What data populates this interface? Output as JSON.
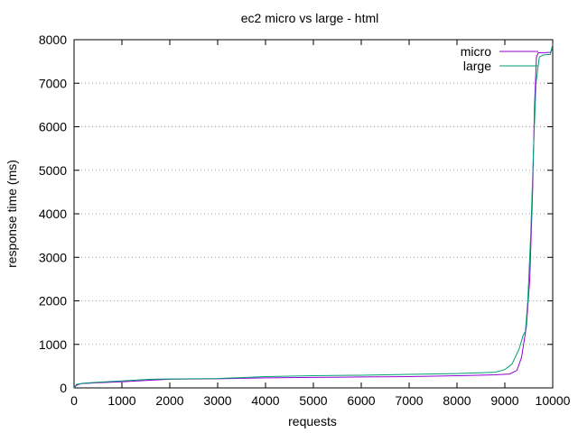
{
  "chart_data": {
    "type": "line",
    "title": "ec2 micro vs large - html",
    "xlabel": "requests",
    "ylabel": "response time (ms)",
    "xlim": [
      0,
      10000
    ],
    "ylim": [
      0,
      8000
    ],
    "xticks": [
      0,
      1000,
      2000,
      3000,
      4000,
      5000,
      6000,
      7000,
      8000,
      9000,
      10000
    ],
    "yticks": [
      0,
      1000,
      2000,
      3000,
      4000,
      5000,
      6000,
      7000,
      8000
    ],
    "grid": "horizontal dotted",
    "legend_position": "top-right",
    "series": [
      {
        "name": "micro",
        "color": "#9400d3",
        "points": [
          [
            0,
            0
          ],
          [
            50,
            60
          ],
          [
            150,
            100
          ],
          [
            500,
            120
          ],
          [
            1000,
            140
          ],
          [
            1500,
            170
          ],
          [
            2000,
            200
          ],
          [
            3000,
            210
          ],
          [
            4000,
            230
          ],
          [
            5000,
            240
          ],
          [
            6000,
            250
          ],
          [
            7000,
            260
          ],
          [
            8000,
            280
          ],
          [
            8800,
            300
          ],
          [
            9100,
            320
          ],
          [
            9250,
            400
          ],
          [
            9350,
            700
          ],
          [
            9450,
            1400
          ],
          [
            9520,
            2500
          ],
          [
            9580,
            4500
          ],
          [
            9620,
            6500
          ],
          [
            9660,
            7600
          ],
          [
            9700,
            7700
          ],
          [
            9800,
            7700
          ],
          [
            9950,
            7710
          ],
          [
            10000,
            7800
          ]
        ]
      },
      {
        "name": "large",
        "color": "#009e73",
        "points": [
          [
            0,
            0
          ],
          [
            50,
            80
          ],
          [
            200,
            110
          ],
          [
            500,
            130
          ],
          [
            1000,
            160
          ],
          [
            1600,
            200
          ],
          [
            2000,
            205
          ],
          [
            3000,
            215
          ],
          [
            4000,
            260
          ],
          [
            5000,
            280
          ],
          [
            6000,
            290
          ],
          [
            7000,
            310
          ],
          [
            8000,
            330
          ],
          [
            8800,
            360
          ],
          [
            9000,
            420
          ],
          [
            9150,
            550
          ],
          [
            9300,
            900
          ],
          [
            9380,
            1200
          ],
          [
            9430,
            1300
          ],
          [
            9480,
            2000
          ],
          [
            9540,
            3500
          ],
          [
            9600,
            5500
          ],
          [
            9650,
            7000
          ],
          [
            9720,
            7600
          ],
          [
            9800,
            7650
          ],
          [
            9950,
            7660
          ],
          [
            10000,
            7900
          ]
        ]
      }
    ]
  }
}
